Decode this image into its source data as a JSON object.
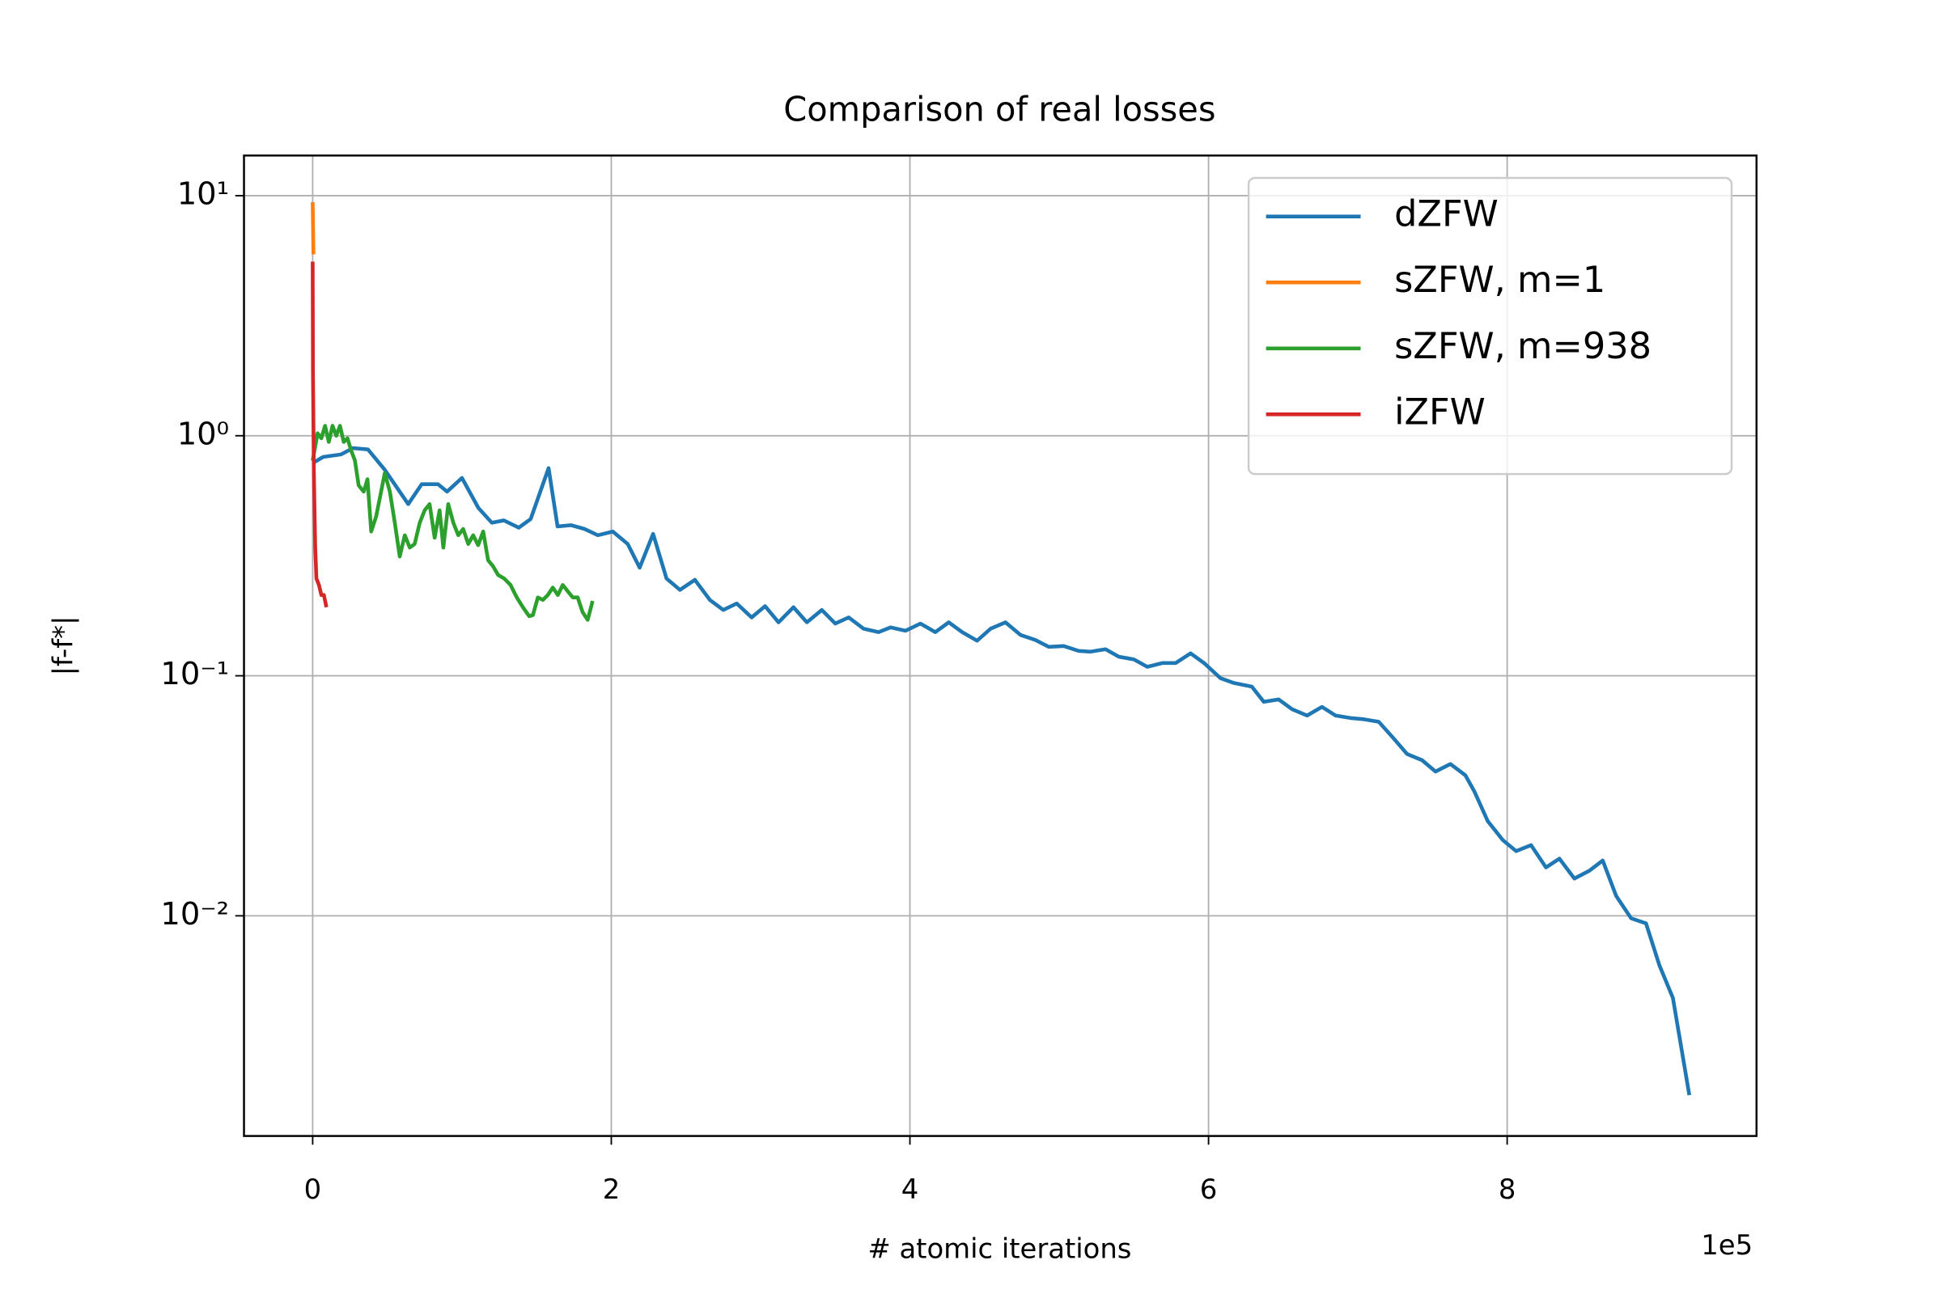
{
  "chart_data": {
    "type": "line",
    "title": "Comparison of real losses",
    "xlabel": "# atomic iterations",
    "ylabel": "|f-f*|",
    "x_offset_label": "1e5",
    "xlim": [
      -0.46,
      9.67
    ],
    "xticks": [
      0,
      2,
      4,
      6,
      8
    ],
    "ylim": [
      0.00121,
      14.7
    ],
    "yscale": "log",
    "yticks": [
      {
        "value": 0.01,
        "label": "10⁻²"
      },
      {
        "value": 0.1,
        "label": "10⁻¹"
      },
      {
        "value": 1,
        "label": "10⁰"
      },
      {
        "value": 10,
        "label": "10¹"
      }
    ],
    "grid": true,
    "legend": "upper right",
    "series": [
      {
        "name": "dZFW",
        "color": "#1f77b4",
        "x": [
          0,
          0.07,
          0.19,
          0.27,
          0.37,
          0.48,
          0.64,
          0.73,
          0.84,
          0.9,
          1.0,
          1.11,
          1.2,
          1.28,
          1.38,
          1.46,
          1.58,
          1.64,
          1.73,
          1.82,
          1.91,
          2.01,
          2.11,
          2.19,
          2.28,
          2.37,
          2.46,
          2.56,
          2.66,
          2.75,
          2.84,
          2.94,
          3.03,
          3.12,
          3.22,
          3.31,
          3.41,
          3.5,
          3.59,
          3.69,
          3.79,
          3.87,
          3.97,
          4.07,
          4.17,
          4.26,
          4.35,
          4.45,
          4.54,
          4.64,
          4.74,
          4.84,
          4.93,
          5.03,
          5.13,
          5.21,
          5.31,
          5.4,
          5.5,
          5.59,
          5.69,
          5.78,
          5.88,
          5.97,
          6.08,
          6.17,
          6.29,
          6.37,
          6.47,
          6.56,
          6.66,
          6.76,
          6.85,
          6.95,
          7.04,
          7.14,
          7.23,
          7.33,
          7.43,
          7.52,
          7.62,
          7.72,
          7.78,
          7.87,
          7.97,
          8.06,
          8.16,
          8.26,
          8.35,
          8.45,
          8.55,
          8.64,
          8.73,
          8.83,
          8.93,
          9.02,
          9.11,
          9.22
        ],
        "values": [
          0.769,
          0.816,
          0.836,
          0.888,
          0.877,
          0.725,
          0.519,
          0.628,
          0.628,
          0.585,
          0.667,
          0.5,
          0.434,
          0.444,
          0.414,
          0.45,
          0.733,
          0.419,
          0.424,
          0.409,
          0.385,
          0.399,
          0.354,
          0.282,
          0.39,
          0.254,
          0.228,
          0.251,
          0.207,
          0.188,
          0.2,
          0.175,
          0.195,
          0.167,
          0.193,
          0.167,
          0.188,
          0.165,
          0.175,
          0.157,
          0.152,
          0.159,
          0.154,
          0.165,
          0.152,
          0.167,
          0.152,
          0.14,
          0.157,
          0.167,
          0.148,
          0.141,
          0.132,
          0.133,
          0.127,
          0.126,
          0.129,
          0.12,
          0.117,
          0.109,
          0.113,
          0.113,
          0.124,
          0.113,
          0.0977,
          0.0933,
          0.0901,
          0.0779,
          0.0797,
          0.0725,
          0.0683,
          0.0742,
          0.0683,
          0.0667,
          0.0659,
          0.0643,
          0.0557,
          0.0472,
          0.0445,
          0.0399,
          0.0429,
          0.0385,
          0.033,
          0.0248,
          0.0207,
          0.0186,
          0.0197,
          0.0159,
          0.0173,
          0.0143,
          0.0154,
          0.017,
          0.0121,
          0.00977,
          0.0093,
          0.00621,
          0.00455,
          0.00179
        ]
      },
      {
        "name": "sZFW, m=1",
        "color": "#ff7f0e",
        "x": [
          0,
          0.003,
          0.005
        ],
        "values": [
          9.4,
          7,
          5.7
        ]
      },
      {
        "name": "sZFW, m=938",
        "color": "#2ca02c",
        "x": [
          0,
          0.033,
          0.058,
          0.083,
          0.108,
          0.133,
          0.158,
          0.183,
          0.208,
          0.233,
          0.258,
          0.283,
          0.308,
          0.342,
          0.367,
          0.392,
          0.425,
          0.45,
          0.483,
          0.517,
          0.55,
          0.583,
          0.617,
          0.65,
          0.683,
          0.717,
          0.75,
          0.783,
          0.817,
          0.85,
          0.875,
          0.908,
          0.942,
          0.975,
          1.008,
          1.042,
          1.075,
          1.108,
          1.142,
          1.175,
          1.208,
          1.242,
          1.283,
          1.325,
          1.367,
          1.408,
          1.45,
          1.475,
          1.508,
          1.542,
          1.575,
          1.608,
          1.642,
          1.675,
          1.708,
          1.742,
          1.775,
          1.808,
          1.842,
          1.875
        ],
        "values": [
          0.788,
          1.024,
          0.976,
          1.1,
          0.942,
          1.1,
          1.0,
          1.1,
          0.942,
          0.976,
          0.867,
          0.788,
          0.621,
          0.585,
          0.659,
          0.399,
          0.461,
          0.551,
          0.699,
          0.585,
          0.434,
          0.314,
          0.385,
          0.342,
          0.354,
          0.434,
          0.489,
          0.519,
          0.376,
          0.489,
          0.342,
          0.519,
          0.434,
          0.385,
          0.409,
          0.354,
          0.385,
          0.35,
          0.399,
          0.303,
          0.286,
          0.263,
          0.254,
          0.239,
          0.212,
          0.193,
          0.177,
          0.179,
          0.212,
          0.207,
          0.217,
          0.233,
          0.217,
          0.239,
          0.225,
          0.212,
          0.212,
          0.184,
          0.171,
          0.205
        ]
      },
      {
        "name": "iZFW",
        "color": "#d62728",
        "x": [
          0,
          0.002,
          0.008,
          0.017,
          0.025,
          0.042,
          0.058,
          0.075,
          0.092
        ],
        "values": [
          5.31,
          1.82,
          0.699,
          0.342,
          0.254,
          0.239,
          0.217,
          0.217,
          0.193
        ]
      }
    ]
  }
}
